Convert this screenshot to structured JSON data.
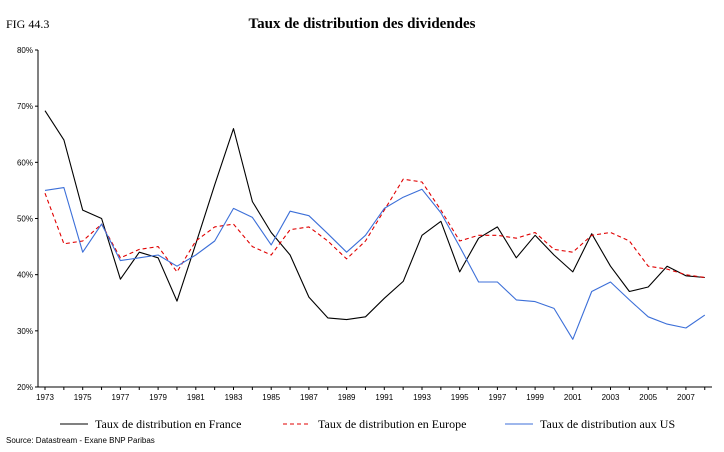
{
  "figure_label": "FIG 44.3",
  "source": "Source: Datastream - Exane BNP Paribas",
  "colors": {
    "france": "#000000",
    "europe": "#e00000",
    "us": "#3c6fd8"
  },
  "chart_data": {
    "type": "line",
    "title": "Taux de distribution des dividendes",
    "xlabel": "",
    "ylabel": "",
    "ylim": [
      20,
      80
    ],
    "xlim": [
      1973,
      2008
    ],
    "grid": false,
    "legend": "bottom",
    "y_ticks": [
      20,
      30,
      40,
      50,
      60,
      70,
      80
    ],
    "y_tick_labels": [
      "20%",
      "30%",
      "40%",
      "50%",
      "60%",
      "70%",
      "80%"
    ],
    "x_ticks": [
      1973,
      1975,
      1977,
      1979,
      1981,
      1983,
      1985,
      1987,
      1989,
      1991,
      1993,
      1995,
      1997,
      1999,
      2001,
      2003,
      2005,
      2007
    ],
    "x_tick_labels": [
      "1973",
      "1975",
      "1977",
      "1979",
      "1981",
      "1983",
      "1985",
      "1987",
      "1989",
      "1991",
      "1993",
      "1995",
      "1997",
      "1999",
      "2001",
      "2003",
      "2005",
      "2007"
    ],
    "x": [
      1973,
      1974,
      1975,
      1976,
      1977,
      1978,
      1979,
      1980,
      1981,
      1982,
      1983,
      1984,
      1985,
      1986,
      1987,
      1988,
      1989,
      1990,
      1991,
      1992,
      1993,
      1994,
      1995,
      1996,
      1997,
      1998,
      1999,
      2000,
      2001,
      2002,
      2003,
      2004,
      2005,
      2006,
      2007,
      2008
    ],
    "series": [
      {
        "name": "Taux de distribution en France",
        "style": "solid",
        "color": "#000000",
        "values": [
          69.2,
          64.0,
          51.5,
          50.0,
          39.2,
          44.0,
          43.0,
          35.3,
          45.5,
          56.0,
          66.0,
          53.0,
          47.5,
          43.5,
          36.0,
          32.3,
          32.0,
          32.5,
          35.8,
          38.8,
          47.0,
          49.5,
          40.5,
          46.5,
          48.5,
          43.0,
          47.0,
          43.5,
          40.5,
          47.3,
          41.5,
          37.0,
          37.8,
          41.5,
          39.8,
          39.5
        ]
      },
      {
        "name": "Taux de distribution en Europe",
        "style": "dashed",
        "color": "#e00000",
        "values": [
          54.5,
          45.5,
          46.0,
          49.0,
          43.0,
          44.5,
          45.0,
          40.5,
          46.0,
          48.5,
          49.0,
          45.0,
          43.5,
          48.0,
          48.5,
          46.0,
          42.8,
          46.0,
          51.5,
          57.0,
          56.5,
          51.5,
          46.0,
          47.0,
          47.0,
          46.5,
          47.5,
          44.5,
          44.0,
          47.0,
          47.5,
          46.0,
          41.5,
          41.0,
          40.0,
          39.5
        ]
      },
      {
        "name": "Taux de distribution aux US",
        "style": "solid",
        "color": "#3c6fd8",
        "values": [
          55.0,
          55.5,
          44.0,
          49.0,
          42.5,
          43.0,
          43.5,
          41.5,
          43.5,
          46.0,
          51.8,
          50.2,
          45.3,
          51.3,
          50.5,
          47.3,
          44.0,
          47.0,
          51.8,
          53.8,
          55.2,
          51.0,
          45.0,
          38.7,
          38.7,
          35.5,
          35.2,
          34.0,
          28.5,
          37.0,
          38.7,
          35.5,
          32.5,
          31.2,
          30.5,
          32.8
        ]
      }
    ]
  }
}
